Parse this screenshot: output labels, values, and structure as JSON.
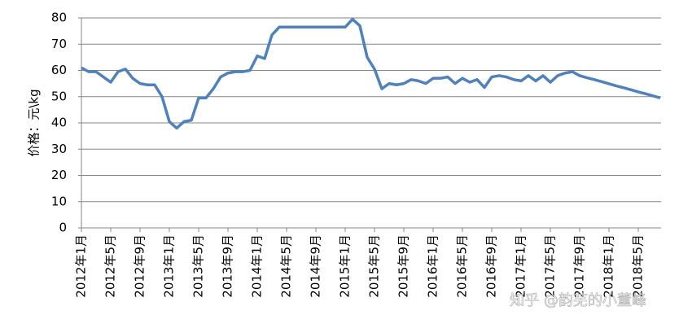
{
  "chart_data": {
    "type": "line",
    "y_label": "价格：元\\kg",
    "watermark": "知乎 @韵芜的小董峰",
    "categories": [
      "2012年1月",
      null,
      null,
      null,
      "2012年5月",
      null,
      null,
      null,
      "2012年9月",
      null,
      null,
      null,
      "2013年1月",
      null,
      null,
      null,
      "2013年5月",
      null,
      null,
      null,
      "2013年9月",
      null,
      null,
      null,
      "2014年1月",
      null,
      null,
      null,
      "2014年5月",
      null,
      null,
      null,
      "2014年9月",
      null,
      null,
      null,
      "2015年1月",
      null,
      null,
      null,
      "2015年5月",
      null,
      null,
      null,
      "2015年9月",
      null,
      null,
      null,
      "2016年1月",
      null,
      null,
      null,
      "2016年5月",
      null,
      null,
      null,
      "2016年9月",
      null,
      null,
      null,
      "2017年1月",
      null,
      null,
      null,
      "2017年5月",
      null,
      null,
      null,
      "2017年9月",
      null,
      null,
      null,
      "2018年1月",
      null,
      null,
      null,
      "2018年5月",
      null,
      null,
      null
    ],
    "values": [
      61,
      59.5,
      59.5,
      57.5,
      55.5,
      59.5,
      60.5,
      57,
      55,
      54.5,
      54.5,
      50,
      40.5,
      38,
      40.5,
      41,
      49.5,
      49.5,
      53,
      57.5,
      59,
      59.5,
      59.5,
      60,
      65.5,
      64.5,
      73.5,
      76.5,
      76.5,
      76.5,
      76.5,
      76.5,
      76.5,
      76.5,
      76.5,
      76.5,
      76.5,
      79.5,
      77,
      65,
      60.5,
      53,
      55,
      54.5,
      55,
      56.5,
      56,
      55,
      57,
      57,
      57.5,
      55,
      57,
      55.5,
      56.5,
      53.5,
      57.5,
      58,
      57.5,
      56.5,
      56,
      58,
      56,
      58,
      55.5,
      58,
      59,
      59.5,
      58,
      57.2,
      56.5,
      55.7,
      54.9,
      54.1,
      53.4,
      52.6,
      51.8,
      51.1,
      50.3,
      49.5
    ],
    "color": "#4f81bd",
    "ylim": [
      0,
      80
    ],
    "yticks": [
      0,
      10,
      20,
      30,
      40,
      50,
      60,
      70,
      80
    ],
    "grid": true
  }
}
